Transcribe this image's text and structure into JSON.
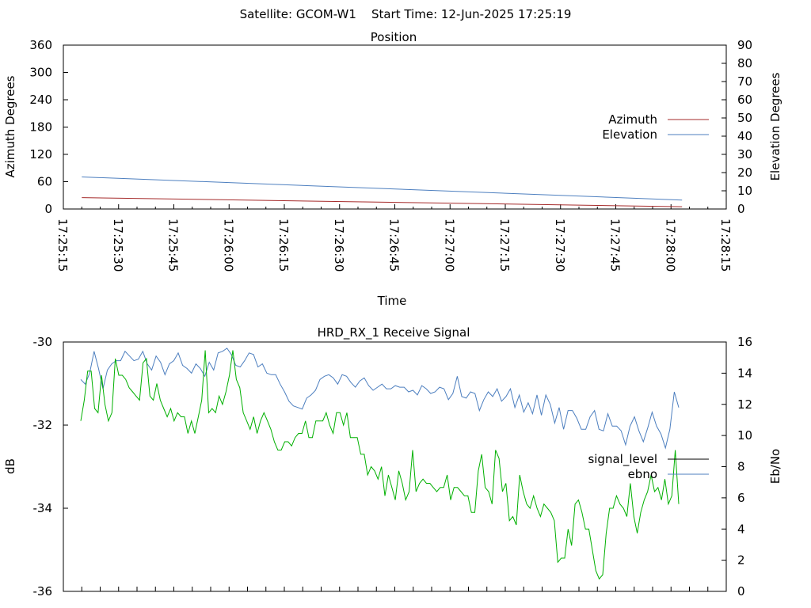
{
  "header": {
    "title": "Satellite: GCOM-W1    Start Time: 12-Jun-2025 17:25:19"
  },
  "chart_data": [
    {
      "type": "line",
      "title": "Position",
      "xlabel": "Time",
      "ylabel": "Azimuth Degrees",
      "y2label": "Elevation Degrees",
      "xlim": [
        "17:25:15",
        "17:28:15"
      ],
      "x_ticks": [
        "17:25:15",
        "17:25:30",
        "17:25:45",
        "17:26:00",
        "17:26:15",
        "17:26:30",
        "17:26:45",
        "17:27:00",
        "17:27:15",
        "17:27:30",
        "17:27:45",
        "17:28:00",
        "17:28:15"
      ],
      "ylim": [
        0,
        360
      ],
      "y_ticks": [
        "360",
        "300",
        "240",
        "180",
        "120",
        "60",
        "0"
      ],
      "y2lim": [
        0,
        90
      ],
      "y2_ticks": [
        "90",
        "80",
        "70",
        "60",
        "50",
        "40",
        "30",
        "20",
        "10",
        "0"
      ],
      "legend_position": "right",
      "series": [
        {
          "name": "Azimuth",
          "axis": "y",
          "color": "#a52a2a",
          "x": [
            "17:25:20",
            "17:28:03"
          ],
          "values": [
            25,
            5
          ]
        },
        {
          "name": "Elevation",
          "axis": "y2",
          "color": "#4d7fbf",
          "x": [
            "17:25:20",
            "17:28:03"
          ],
          "values": [
            17.6,
            4.9
          ]
        }
      ]
    },
    {
      "type": "line",
      "title": "HRD_RX_1 Receive Signal",
      "ylabel": "dB",
      "y2label": "Eb/No",
      "ylim": [
        -36,
        -30
      ],
      "y_ticks": [
        "-30",
        "-32",
        "-34",
        "-36"
      ],
      "y2lim": [
        0,
        16
      ],
      "y2_ticks": [
        "16",
        "14",
        "12",
        "10",
        "8",
        "6",
        "4",
        "2",
        "0"
      ],
      "legend_position": "right",
      "series": [
        {
          "name": "signal_level",
          "axis": "y",
          "color": "#000000",
          "values": []
        },
        {
          "name": "ebno",
          "axis": "y2",
          "color": "#4d7fbf",
          "values": [
            13.6,
            13.3,
            14.0,
            15.4,
            14.3,
            13.0,
            14.2,
            14.6,
            14.8,
            14.8,
            15.4,
            15.1,
            14.8,
            14.9,
            15.4,
            14.6,
            14.2,
            15.1,
            14.7,
            13.9,
            14.6,
            14.8,
            15.3,
            14.5,
            14.3,
            14.0,
            14.6,
            14.3,
            13.8,
            14.7,
            14.2,
            15.3,
            15.4,
            15.6,
            15.2,
            14.5,
            14.4,
            14.8,
            15.3,
            15.2,
            14.4,
            14.6,
            14.0,
            13.9,
            13.9,
            13.3,
            12.8,
            12.2,
            11.9,
            11.8,
            11.7,
            12.4,
            12.6,
            12.9,
            13.6,
            13.8,
            13.9,
            13.7,
            13.3,
            13.9,
            13.8,
            13.4,
            13.1,
            13.5,
            13.7,
            13.2,
            12.9,
            13.1,
            13.3,
            13.0,
            13.0,
            13.2,
            13.1,
            13.1,
            12.8,
            12.9,
            12.6,
            13.2,
            13.0,
            12.7,
            12.8,
            13.1,
            13.0,
            12.3,
            12.7,
            13.8,
            12.5,
            12.4,
            12.8,
            12.7,
            11.6,
            12.3,
            12.8,
            12.5,
            13.0,
            12.2,
            12.5,
            13.0,
            11.8,
            12.6,
            11.5,
            12.1,
            11.4,
            12.6,
            11.3,
            12.6,
            12.0,
            10.8,
            11.8,
            10.4,
            11.6,
            11.6,
            11.1,
            10.4,
            10.4,
            11.2,
            11.6,
            10.4,
            10.3,
            11.4,
            10.6,
            10.6,
            10.3,
            9.4,
            10.6,
            11.2,
            10.3,
            9.6,
            10.5,
            11.5,
            10.6,
            10.1,
            9.2,
            10.4,
            12.8,
            11.8
          ]
        },
        {
          "name": "",
          "axis": "y",
          "color": "#00b000",
          "values": [
            -31.9,
            -31.4,
            -30.7,
            -30.7,
            -31.6,
            -31.7,
            -30.8,
            -31.5,
            -31.9,
            -31.7,
            -30.4,
            -30.8,
            -30.8,
            -30.9,
            -31.1,
            -31.2,
            -31.3,
            -31.4,
            -30.5,
            -30.4,
            -31.3,
            -31.4,
            -31.0,
            -31.4,
            -31.6,
            -31.8,
            -31.6,
            -31.9,
            -31.7,
            -31.8,
            -31.8,
            -32.2,
            -31.9,
            -32.2,
            -31.8,
            -31.4,
            -30.2,
            -31.7,
            -31.6,
            -31.7,
            -31.3,
            -31.5,
            -31.2,
            -30.8,
            -30.2,
            -30.9,
            -31.1,
            -31.7,
            -31.9,
            -32.1,
            -31.8,
            -32.2,
            -31.9,
            -31.7,
            -31.9,
            -32.1,
            -32.4,
            -32.6,
            -32.6,
            -32.4,
            -32.4,
            -32.5,
            -32.3,
            -32.2,
            -32.2,
            -31.9,
            -32.3,
            -32.3,
            -31.9,
            -31.9,
            -31.9,
            -31.7,
            -32.0,
            -32.2,
            -31.7,
            -31.7,
            -32.0,
            -31.7,
            -32.3,
            -32.3,
            -32.3,
            -32.7,
            -32.7,
            -33.2,
            -33.0,
            -33.1,
            -33.3,
            -33.0,
            -33.7,
            -33.2,
            -33.5,
            -33.8,
            -33.1,
            -33.4,
            -33.8,
            -33.6,
            -32.6,
            -33.6,
            -33.4,
            -33.3,
            -33.4,
            -33.4,
            -33.5,
            -33.6,
            -33.5,
            -33.5,
            -33.2,
            -33.8,
            -33.5,
            -33.5,
            -33.6,
            -33.7,
            -33.7,
            -34.1,
            -34.1,
            -33.1,
            -32.7,
            -33.5,
            -33.6,
            -33.9,
            -32.6,
            -32.8,
            -33.6,
            -33.4,
            -34.3,
            -34.2,
            -34.4,
            -33.2,
            -33.6,
            -33.9,
            -34.0,
            -33.7,
            -34.0,
            -34.2,
            -33.9,
            -34.0,
            -34.1,
            -34.3,
            -35.3,
            -35.2,
            -35.2,
            -34.5,
            -34.9,
            -33.9,
            -33.8,
            -34.1,
            -34.5,
            -34.5,
            -35.0,
            -35.5,
            -35.7,
            -35.6,
            -34.6,
            -34.0,
            -34.0,
            -33.7,
            -33.9,
            -34.0,
            -34.2,
            -33.4,
            -34.2,
            -34.6,
            -34.1,
            -33.8,
            -33.6,
            -33.2,
            -33.6,
            -33.5,
            -33.8,
            -33.3,
            -33.9,
            -33.7,
            -32.6,
            -33.9
          ]
        }
      ]
    }
  ]
}
